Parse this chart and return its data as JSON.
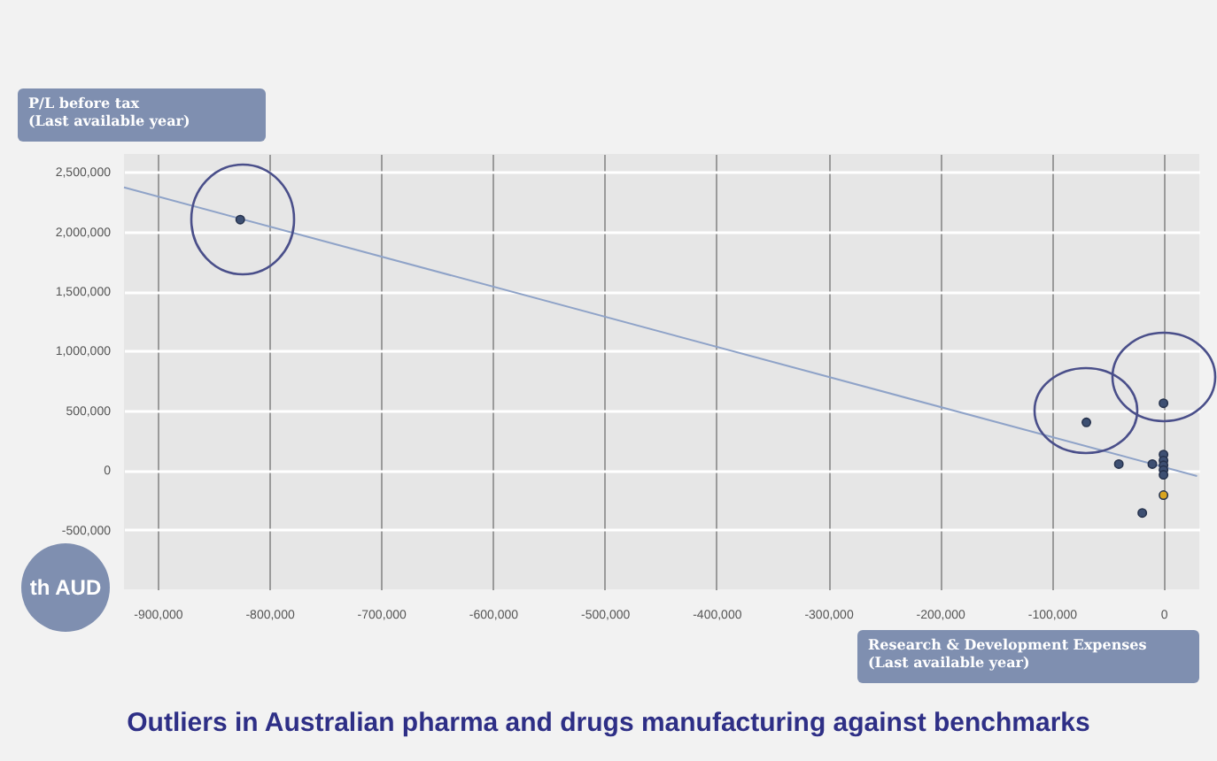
{
  "chart_data": {
    "type": "scatter",
    "title": "Outliers in Australian pharma and drugs manufacturing against benchmarks",
    "xlabel": "Research & Development Expenses\n(Last available year)",
    "ylabel": "P/L before tax\n(Last available year)",
    "annotations": [
      "th AUD"
    ],
    "xlim": [
      -930000,
      32000
    ],
    "ylim": [
      -1000000,
      2650000
    ],
    "xticks": [
      {
        "value": -900000,
        "label": "-900,000"
      },
      {
        "value": -800000,
        "label": "-800,000"
      },
      {
        "value": -700000,
        "label": "-700,000"
      },
      {
        "value": -600000,
        "label": "-600,000"
      },
      {
        "value": -500000,
        "label": "-500,000"
      },
      {
        "value": -400000,
        "label": "-400,000"
      },
      {
        "value": -300000,
        "label": "-300,000"
      },
      {
        "value": -200000,
        "label": "-200,000"
      },
      {
        "value": -100000,
        "label": "-100,000"
      },
      0
    ],
    "yticks": [
      {
        "value": -500000,
        "label": "-500,000"
      },
      0,
      {
        "value": 500000,
        "label": "500,000"
      },
      {
        "value": 1000000,
        "label": "1,000,000"
      },
      {
        "value": 1500000,
        "label": "1,500,000"
      },
      {
        "value": 2000000,
        "label": "2,000,000"
      },
      {
        "value": 2500000,
        "label": "2,500,000"
      }
    ],
    "grid": true,
    "series": [
      {
        "type": "line",
        "color": "#8fa3c8",
        "x": [
          -930000,
          30000
        ],
        "values": [
          2370000,
          -50000
        ]
      },
      {
        "color": "#3d4f72",
        "x": [
          -826000,
          -69000,
          0,
          -40000,
          -10000,
          0,
          0,
          0,
          0,
          0,
          -19000
        ],
        "values": [
          2100000,
          400000,
          560000,
          50000,
          50000,
          130000,
          80000,
          40000,
          0,
          -40000,
          -360000
        ]
      },
      {
        "color": "#d9a520",
        "x": [
          0
        ],
        "values": [
          -210000
        ]
      }
    ]
  }
}
